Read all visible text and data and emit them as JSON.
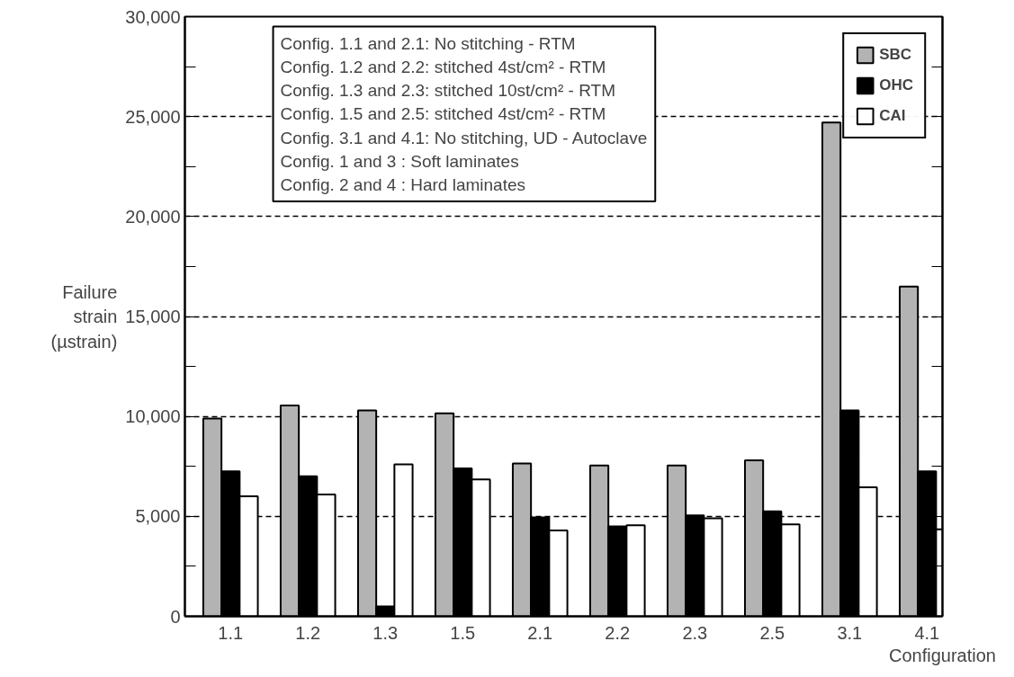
{
  "chart_data": {
    "type": "bar",
    "xlabel": "Configuration",
    "ylabel": "Failure strain (µstrain)",
    "categories": [
      "1.1",
      "1.2",
      "1.3",
      "1.5",
      "2.1",
      "2.2",
      "2.3",
      "2.5",
      "3.1",
      "4.1"
    ],
    "series": [
      {
        "name": "SBC",
        "color": "#b3b3b3",
        "values": [
          9900,
          10550,
          10300,
          10150,
          7650,
          7550,
          7550,
          7800,
          24700,
          16500
        ]
      },
      {
        "name": "OHC",
        "color": "#000000",
        "values": [
          7250,
          7000,
          500,
          7400,
          4950,
          4500,
          5050,
          5250,
          10300,
          7250
        ]
      },
      {
        "name": "CAI",
        "color": "#ffffff",
        "values": [
          6000,
          6100,
          7600,
          6850,
          4300,
          4550,
          4900,
          4600,
          6450,
          4350
        ]
      }
    ],
    "ylim": [
      0,
      30000
    ],
    "yticks": [
      0,
      {
        "value": 2500,
        "label": null
      },
      {
        "value": 5000,
        "label": "5,000"
      },
      {
        "value": 7500,
        "label": null
      },
      {
        "value": 10000,
        "label": "10,000"
      },
      {
        "value": 12500,
        "label": null
      },
      {
        "value": 15000,
        "label": "15,000"
      },
      {
        "value": 17500,
        "label": null
      },
      {
        "value": 20000,
        "label": "20,000"
      },
      {
        "value": 22500,
        "label": null
      },
      {
        "value": 25000,
        "label": "25,000"
      },
      {
        "value": 27500,
        "label": null
      },
      {
        "value": 30000,
        "label": "30,000"
      }
    ],
    "grid": "y",
    "legend": "top right",
    "annotations": [
      "Config. 1.1 and 2.1: No stitching - RTM",
      "Config. 1.2 and 2.2: stitched 4st/cm² - RTM",
      "Config. 1.3 and 2.3: stitched 10st/cm² - RTM",
      "Config. 1.5 and 2.5: stitched 4st/cm² - RTM",
      "Config. 3.1 and 4.1: No stitching, UD - Autoclave",
      "Config. 1 and 3      : Soft laminates",
      "Config. 2 and 4      : Hard laminates"
    ]
  }
}
